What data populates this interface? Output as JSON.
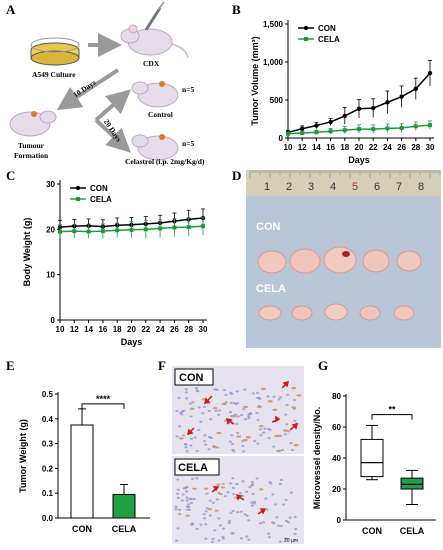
{
  "panel_letters": [
    "A",
    "B",
    "C",
    "D",
    "E",
    "F",
    "G"
  ],
  "panel_a": {
    "culture_label": "A549  Culture",
    "cdx_label": "CDX",
    "ten_days_label": "10 Days",
    "twenty_days_label": "20 Days",
    "n_label_1": "n=5",
    "n_label_2": "n=5",
    "control_label": "Control",
    "tumour_label_1": "Tumour",
    "tumour_label_2": "Formation",
    "treatment_label": "Celastrol (i.p. 2mg/Kg/d)"
  },
  "panel_d": {
    "ruler_numbers": [
      "1",
      "2",
      "3",
      "4",
      "5",
      "6",
      "7",
      "8"
    ],
    "con_label": "CON",
    "cela_label": "CELA"
  },
  "panel_f": {
    "con_label": "CON",
    "cela_label": "CELA",
    "scale_label": "20 μm"
  },
  "colors": {
    "con": "#000000",
    "cela": "#1e9a3e",
    "bar_cela": "#22a046"
  },
  "chart_data": [
    {
      "id": "B",
      "type": "line",
      "xlabel": "Days",
      "ylabel": "Tumor Volume (mm³)",
      "x": [
        10,
        12,
        14,
        16,
        18,
        20,
        22,
        24,
        26,
        28,
        30
      ],
      "xticks": [
        "10",
        "12",
        "14",
        "16",
        "18",
        "20",
        "22",
        "24",
        "26",
        "28",
        "30"
      ],
      "yticks": [
        "0",
        "500",
        "1,000",
        "1,500"
      ],
      "ylim": [
        0,
        1600
      ],
      "legend_position": "top-left",
      "series": [
        {
          "name": "CON",
          "values": [
            80,
            130,
            175,
            225,
            310,
            410,
            420,
            500,
            580,
            690,
            910
          ],
          "errors": [
            30,
            40,
            45,
            50,
            120,
            130,
            130,
            160,
            150,
            150,
            180
          ]
        },
        {
          "name": "CELA",
          "values": [
            60,
            70,
            80,
            95,
            110,
            125,
            125,
            135,
            140,
            165,
            180
          ],
          "errors": [
            20,
            25,
            30,
            40,
            50,
            60,
            60,
            60,
            60,
            60,
            60
          ]
        }
      ]
    },
    {
      "id": "C",
      "type": "line",
      "xlabel": "Days",
      "ylabel": "Body Weight (g)",
      "x": [
        10,
        12,
        14,
        16,
        18,
        20,
        22,
        24,
        26,
        28,
        30
      ],
      "xticks": [
        "10",
        "12",
        "14",
        "16",
        "18",
        "20",
        "22",
        "24",
        "26",
        "28",
        "30"
      ],
      "yticks": [
        "0",
        "10",
        "20",
        "30"
      ],
      "ylim": [
        0,
        30
      ],
      "legend_position": "top-left",
      "series": [
        {
          "name": "CON",
          "values": [
            20.5,
            20.7,
            20.8,
            20.6,
            20.9,
            21.0,
            21.2,
            21.4,
            21.8,
            22.2,
            22.5
          ],
          "errors": [
            1.5,
            1.5,
            1.5,
            1.5,
            1.6,
            1.6,
            1.6,
            1.7,
            1.8,
            2.0,
            2.0
          ]
        },
        {
          "name": "CELA",
          "values": [
            19.5,
            19.6,
            19.5,
            19.6,
            19.8,
            19.9,
            20.0,
            20.2,
            20.4,
            20.5,
            20.7
          ],
          "errors": [
            1.5,
            1.5,
            1.5,
            1.6,
            1.6,
            1.8,
            2.0,
            2.0,
            2.0,
            2.0,
            2.0
          ]
        }
      ]
    },
    {
      "id": "E",
      "type": "bar",
      "ylabel": "Tumor Weight (g)",
      "categories": [
        "CON",
        "CELA"
      ],
      "values": [
        0.375,
        0.095
      ],
      "errors": [
        0.065,
        0.04
      ],
      "yticks": [
        "0.0",
        "0.1",
        "0.2",
        "0.3",
        "0.4",
        "0.5"
      ],
      "ylim": [
        0,
        0.5
      ],
      "significance": "****"
    },
    {
      "id": "G",
      "type": "boxplot",
      "ylabel": "Microvessel density/No.",
      "categories": [
        "CON",
        "CELA"
      ],
      "boxes": [
        {
          "min": 26,
          "q1": 28,
          "median": 37,
          "q3": 52,
          "max": 61
        },
        {
          "min": 10,
          "q1": 20,
          "median": 23,
          "q3": 27,
          "max": 32
        }
      ],
      "yticks": [
        "0",
        "20",
        "40",
        "60",
        "80"
      ],
      "ylim": [
        0,
        80
      ],
      "significance": "**"
    }
  ]
}
